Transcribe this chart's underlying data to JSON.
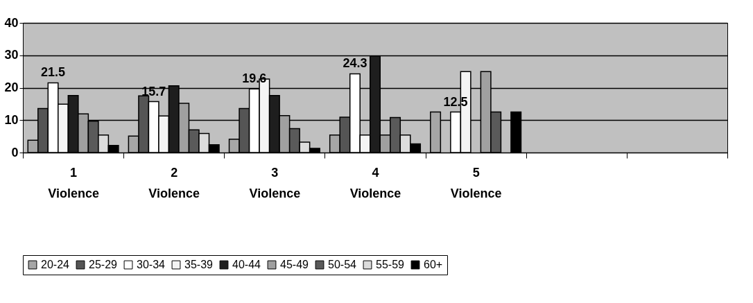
{
  "chart_data": {
    "type": "bar",
    "categories": [
      "1 Violence",
      "2 Violence",
      "3 Violence",
      "4 Violence",
      "5 Violence",
      null,
      null
    ],
    "series": [
      {
        "name": "20-24",
        "color": "#a6a6a6",
        "values": [
          3.8,
          5.1,
          4.1,
          5.4,
          12.5,
          null,
          null
        ]
      },
      {
        "name": "25-29",
        "color": "#555555",
        "values": [
          13.6,
          17.5,
          13.6,
          10.9,
          null,
          null,
          null
        ]
      },
      {
        "name": "30-34",
        "color": "#ffffff",
        "values": [
          21.5,
          15.7,
          19.6,
          24.3,
          12.5,
          null,
          null
        ],
        "value_labels": [
          "21.5",
          "15.7",
          "19.6",
          "24.3",
          "12.5",
          null,
          null
        ]
      },
      {
        "name": "35-39",
        "color": "#f4f4f4",
        "values": [
          14.9,
          11.3,
          22.7,
          5.4,
          25,
          null,
          null
        ]
      },
      {
        "name": "40-44",
        "color": "#1e1e1e",
        "values": [
          17.6,
          20.6,
          17.6,
          29.8,
          null,
          null,
          null
        ]
      },
      {
        "name": "45-49",
        "color": "#a0a0a0",
        "values": [
          11.9,
          15.2,
          11.4,
          5.4,
          25,
          null,
          null
        ]
      },
      {
        "name": "50-54",
        "color": "#5a5a5a",
        "values": [
          9.7,
          7,
          7.4,
          10.8,
          12.5,
          null,
          null
        ]
      },
      {
        "name": "55-59",
        "color": "#dcdcdc",
        "values": [
          5.4,
          5.9,
          3.2,
          5.4,
          null,
          null,
          null
        ]
      },
      {
        "name": "60+",
        "color": "#000000",
        "values": [
          2.2,
          2.4,
          1.3,
          2.7,
          12.5,
          null,
          null
        ]
      }
    ],
    "ylim": [
      0,
      40
    ],
    "yticks": [
      0,
      10,
      20,
      30,
      40
    ],
    "grid": "y",
    "legend": "bottom"
  }
}
